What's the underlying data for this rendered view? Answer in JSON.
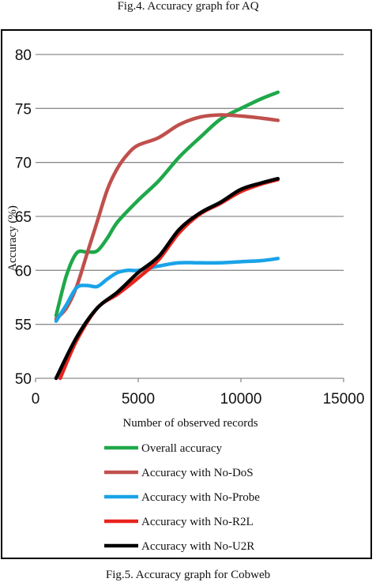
{
  "captions": {
    "top": "Fig.4. Accuracy graph for AQ",
    "bottom": "Fig.5. Accuracy graph for Cobweb"
  },
  "chart_data": {
    "type": "line",
    "xlabel": "Number of observed records",
    "ylabel": "Accuracy (%)",
    "xlim": [
      0,
      15000
    ],
    "ylim": [
      50,
      80
    ],
    "xticks": [
      "0",
      "5000",
      "10000",
      "15000"
    ],
    "yticks": [
      "50",
      "55",
      "60",
      "65",
      "70",
      "75",
      "80"
    ],
    "grid": "horizontal",
    "legend_position": "bottom",
    "series": [
      {
        "name": "Overall accuracy",
        "color": "#1fa84a",
        "x": [
          1000,
          1500,
          2000,
          2500,
          3000,
          3500,
          4000,
          5000,
          6000,
          7000,
          8000,
          9000,
          10000,
          11000,
          11800
        ],
        "y": [
          55.8,
          59.5,
          61.6,
          61.7,
          61.8,
          63.0,
          64.5,
          66.5,
          68.3,
          70.5,
          72.3,
          74.0,
          75.0,
          75.9,
          76.5
        ]
      },
      {
        "name": "Accuracy with No-DoS",
        "color": "#c0504d",
        "x": [
          1000,
          1500,
          2000,
          2500,
          3000,
          3500,
          4000,
          4500,
          5000,
          6000,
          7000,
          8000,
          9000,
          10000,
          11000,
          11800
        ],
        "y": [
          55.5,
          56.5,
          58.5,
          61.5,
          64.5,
          67.5,
          69.5,
          70.8,
          71.6,
          72.3,
          73.5,
          74.2,
          74.4,
          74.3,
          74.1,
          73.9
        ]
      },
      {
        "name": "Accuracy with No-Probe",
        "color": "#1aa3e8",
        "x": [
          1000,
          1500,
          2000,
          2500,
          3000,
          3500,
          4000,
          4500,
          5000,
          6000,
          7000,
          8000,
          9000,
          10000,
          11000,
          11800
        ],
        "y": [
          55.3,
          56.8,
          58.4,
          58.6,
          58.5,
          59.2,
          59.8,
          60.0,
          60.0,
          60.4,
          60.7,
          60.7,
          60.7,
          60.8,
          60.9,
          61.1
        ]
      },
      {
        "name": "Accuracy with No-R2L",
        "color": "#e8231c",
        "x": [
          1200,
          2000,
          3000,
          4000,
          5000,
          6000,
          7000,
          8000,
          9000,
          10000,
          11000,
          11800
        ],
        "y": [
          50.0,
          53.5,
          56.5,
          57.8,
          59.3,
          61.0,
          63.5,
          65.2,
          66.2,
          67.3,
          68.0,
          68.4
        ]
      },
      {
        "name": "Accuracy with No-U2R",
        "color": "#000000",
        "x": [
          1000,
          2000,
          3000,
          4000,
          5000,
          6000,
          7000,
          8000,
          9000,
          10000,
          11000,
          11800
        ],
        "y": [
          50.0,
          53.8,
          56.5,
          58.0,
          59.8,
          61.3,
          63.8,
          65.3,
          66.3,
          67.5,
          68.1,
          68.5
        ]
      }
    ]
  }
}
